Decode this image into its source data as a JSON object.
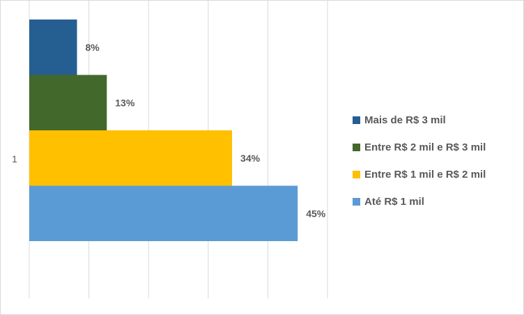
{
  "chart_data": {
    "type": "bar",
    "orientation": "horizontal",
    "categories": [
      "1"
    ],
    "unit": "%",
    "xlim": [
      0,
      50
    ],
    "grid": true,
    "legend_position": "right",
    "series": [
      {
        "name": "Mais de R$ 3 mil",
        "values": [
          8
        ],
        "label": "8%",
        "color": "#255e91"
      },
      {
        "name": "Entre R$ 2 mil e R$ 3 mil",
        "values": [
          13
        ],
        "label": "13%",
        "color": "#43682b"
      },
      {
        "name": "Entre R$ 1 mil e R$ 2 mil",
        "values": [
          34
        ],
        "label": "34%",
        "color": "#ffc000"
      },
      {
        "name": "Até R$ 1 mil",
        "values": [
          45
        ],
        "label": "45%",
        "color": "#5b9bd5"
      }
    ]
  }
}
